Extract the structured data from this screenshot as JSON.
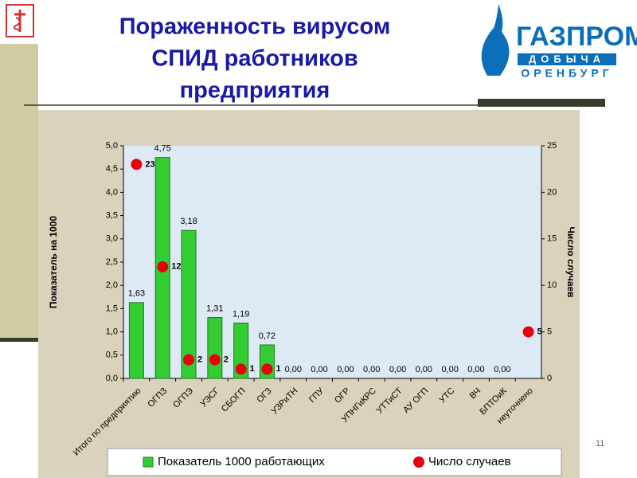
{
  "slide": {
    "title_lines": [
      "Пораженность вирусом",
      "СПИД работников",
      "предприятия"
    ],
    "logo": {
      "name": "ГАЗПРОМ",
      "line2": "ДОБЫЧА",
      "line3": "ОРЕНБУРГ"
    },
    "page_number": "11"
  },
  "chart_data": {
    "type": "bar",
    "categories": [
      "Итого по предприятию",
      "ОГПЗ",
      "ОГПЭ",
      "УЭСГ",
      "СБОГП",
      "ОГЗ",
      "УЗРиТН",
      "ГПУ",
      "ОГР",
      "УПНГиКРС",
      "УТТиСТ",
      "АУ ОГП",
      "УТС",
      "ВЧ",
      "БПТОиК",
      "неуточнено"
    ],
    "y_label": "Показатель на 1000",
    "y2_label": "Число случаев",
    "series": [
      {
        "name": "Показатель 1000 работающих",
        "type": "bar",
        "color": "#33cc33",
        "values": [
          1.63,
          4.75,
          3.18,
          1.31,
          1.19,
          0.72,
          0,
          0,
          0,
          0,
          0,
          0,
          0,
          0,
          0,
          null
        ],
        "value_labels": [
          "1,63",
          "4,75",
          "3,18",
          "1,31",
          "1,19",
          "0,72",
          "0,00",
          "0,00",
          "0,00",
          "0,00",
          "0,00",
          "0,00",
          "0,00",
          "0,00",
          "0,00",
          null
        ]
      },
      {
        "name": "Число случаев",
        "type": "scatter",
        "axis": "y2",
        "color": "#e8000f",
        "values": [
          23,
          12,
          2,
          2,
          1,
          1,
          null,
          null,
          null,
          null,
          null,
          null,
          null,
          null,
          null,
          5
        ]
      }
    ],
    "ylim": [
      0,
      5
    ],
    "yticks": [
      {
        "value": 0,
        "label": "0,0"
      },
      {
        "value": 0.5,
        "label": "0,5"
      },
      {
        "value": 1,
        "label": "1,0"
      },
      {
        "value": 1.5,
        "label": "1,5"
      },
      {
        "value": 2,
        "label": "2,0"
      },
      {
        "value": 2.5,
        "label": "2,5"
      },
      {
        "value": 3,
        "label": "3,0"
      },
      {
        "value": 3.5,
        "label": "3,5"
      },
      {
        "value": 4,
        "label": "4,0"
      },
      {
        "value": 4.5,
        "label": "4,5"
      },
      {
        "value": 5,
        "label": "5,0"
      }
    ],
    "y2lim": [
      0,
      25
    ],
    "y2ticks": [
      0,
      5,
      10,
      15,
      20,
      25
    ],
    "legend": "bottom"
  }
}
